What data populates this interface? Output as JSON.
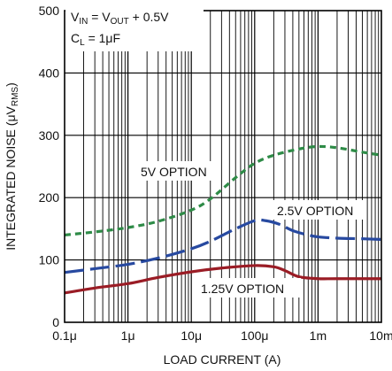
{
  "chart_data": {
    "type": "line",
    "xlabel": "LOAD CURRENT (A)",
    "ylabel": {
      "main": "INTEGRATED NOISE (μV",
      "sub": "RMS",
      "close": ")"
    },
    "xscale": "log",
    "xlim": [
      1e-07,
      0.01
    ],
    "ylim": [
      0,
      500
    ],
    "grid": true,
    "x_tick_values": [
      1e-07,
      1e-06,
      1e-05,
      0.0001,
      0.001,
      0.01
    ],
    "x_tick_labels": [
      "0.1μ",
      "1μ",
      "10μ",
      "100μ",
      "1m",
      "10m"
    ],
    "y_tick_values": [
      0,
      100,
      200,
      300,
      400,
      500
    ],
    "y_tick_labels": [
      "0",
      "100",
      "200",
      "300",
      "400",
      "500"
    ],
    "annotation": {
      "line1": {
        "a": "V",
        "a_sub": "IN",
        "b": " = V",
        "b_sub": "OUT",
        "c": " + 0.5V"
      },
      "line2": {
        "a": "C",
        "a_sub": "L",
        "b": " = 1μF"
      }
    },
    "series": [
      {
        "name": "5V OPTION",
        "color": "#2e8b47",
        "dash": "dashed",
        "x": [
          1e-07,
          3e-07,
          1e-06,
          3e-06,
          1e-05,
          2e-05,
          5e-05,
          0.0001,
          0.0002,
          0.0005,
          0.001,
          0.002,
          0.005,
          0.01
        ],
        "y": [
          140,
          145,
          152,
          162,
          180,
          198,
          232,
          255,
          268,
          278,
          282,
          280,
          273,
          268
        ]
      },
      {
        "name": "2.5V OPTION",
        "color": "#2749a0",
        "dash": "longdash",
        "x": [
          1e-07,
          3e-07,
          1e-06,
          3e-06,
          1e-05,
          2e-05,
          5e-05,
          0.0001,
          0.00015,
          0.00025,
          0.0004,
          0.0007,
          0.001,
          0.002,
          0.005,
          0.01
        ],
        "y": [
          80,
          86,
          93,
          103,
          118,
          130,
          150,
          163,
          163,
          157,
          147,
          140,
          137,
          135,
          134,
          133
        ]
      },
      {
        "name": "1.25V OPTION",
        "color": "#9a1c25",
        "dash": "solid",
        "x": [
          1e-07,
          3e-07,
          1e-06,
          3e-06,
          1e-05,
          3e-05,
          0.0001,
          0.0002,
          0.0003,
          0.0005,
          0.001,
          0.002,
          0.01
        ],
        "y": [
          47,
          55,
          62,
          72,
          81,
          87,
          91,
          89,
          83,
          73,
          70,
          70,
          70
        ]
      }
    ]
  }
}
